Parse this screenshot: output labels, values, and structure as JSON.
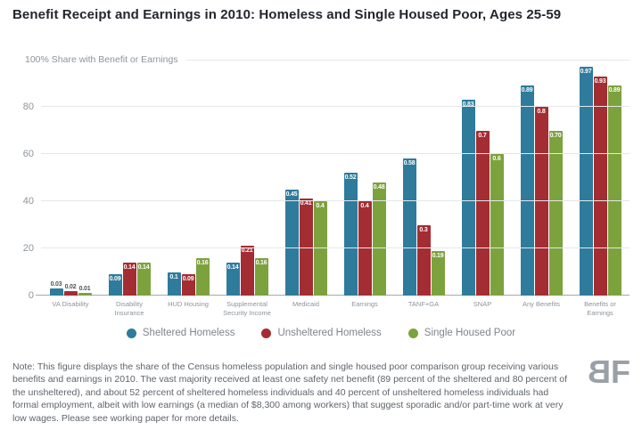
{
  "title": "Benefit Receipt and Earnings in 2010: Homeless and Single Housed Poor, Ages 25-59",
  "axis_top_label": "100% Share with Benefit or Earnings",
  "chart_data": {
    "type": "bar",
    "categories": [
      "VA Disability",
      "Disability Insurance",
      "HUD Housing",
      "Supplemental Security Income",
      "Medicaid",
      "Earnings",
      "TANF+GA",
      "SNAP",
      "Any Benefits",
      "Benefits or Earnings"
    ],
    "series": [
      {
        "name": "Sheltered Homeless",
        "color": "#2E7B9C",
        "values": [
          0.03,
          0.09,
          0.1,
          0.14,
          0.45,
          0.52,
          0.58,
          0.83,
          0.89,
          0.97
        ],
        "labels": [
          "0.03",
          "0.09",
          "0.1",
          "0.14",
          "0.45",
          "0.52",
          "0.58",
          "0.83",
          "0.89",
          "0.97"
        ]
      },
      {
        "name": "Unsheltered Homeless",
        "color": "#A42D33",
        "values": [
          0.02,
          0.14,
          0.09,
          0.21,
          0.41,
          0.4,
          0.3,
          0.7,
          0.8,
          0.93
        ],
        "labels": [
          "0.02",
          "0.14",
          "0.09",
          "0.21",
          "0.41",
          "0.4",
          "0.3",
          "0.7",
          "0.8",
          "0.93"
        ]
      },
      {
        "name": "Single Housed Poor",
        "color": "#7CA23E",
        "values": [
          0.01,
          0.14,
          0.16,
          0.16,
          0.4,
          0.48,
          0.19,
          0.6,
          0.7,
          0.89
        ],
        "labels": [
          "0.01",
          "0.14",
          "0.16",
          "0.16",
          "0.4",
          "0.48",
          "0.19",
          "0.6",
          "0.70",
          "0.89"
        ]
      }
    ],
    "title": "Benefit Receipt and Earnings in 2010: Homeless and Single Housed Poor, Ages 25-59",
    "xlabel": "",
    "ylabel": "100% Share with Benefit or Earnings",
    "yticks": [
      0,
      20,
      40,
      60,
      80
    ],
    "ylim": [
      0,
      100
    ],
    "grid": true,
    "legend_position": "bottom"
  },
  "note": "Note: This figure displays the share of the Census homeless population and single housed poor comparison group receiving various benefits and earnings in 2010. The vast majority received at least one safety net benefit (89 percent of the sheltered and 80 percent of the unsheltered), and about 52 percent of sheltered homeless individuals and 40 percent of unsheltered homeless individuals had formal employment, albeit with low earnings (a median of $8,300 among workers) that suggest sporadic and/or part-time work at very low wages. Please see working paper for more details.",
  "logo": {
    "letter_b": "B",
    "letter_f": "F"
  }
}
